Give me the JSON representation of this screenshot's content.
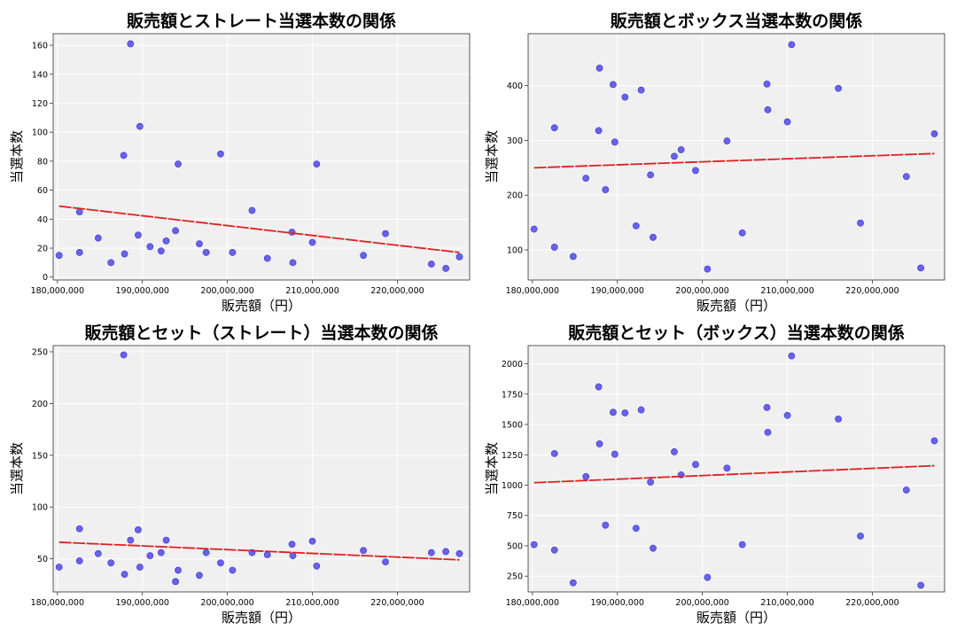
{
  "chart_data": [
    {
      "type": "scatter",
      "title": "販売額とストレート当選本数の関係",
      "xlabel": "販売額（円）",
      "ylabel": "当選本数",
      "xlim": [
        179500000,
        228500000
      ],
      "ylim": [
        -2,
        168
      ],
      "xticks": [
        180000000,
        190000000,
        200000000,
        210000000,
        220000000
      ],
      "xtick_labels": [
        "180,000,000",
        "190,000,000",
        "200,000,000",
        "210,000,000",
        "220,000,000"
      ],
      "yticks": [
        0,
        20,
        40,
        60,
        80,
        100,
        120,
        140,
        160
      ],
      "ytick_labels": [
        "0",
        "20",
        "40",
        "60",
        "80",
        "100",
        "120",
        "140",
        "160"
      ],
      "grid": true,
      "point_color": "#3b34e0",
      "trend_color": "#e02020",
      "trend": {
        "x": [
          180200000,
          227300000
        ],
        "y": [
          49,
          17
        ]
      },
      "points": [
        {
          "x": 180200000,
          "y": 15
        },
        {
          "x": 182600000,
          "y": 17
        },
        {
          "x": 182600000,
          "y": 45
        },
        {
          "x": 184800000,
          "y": 27
        },
        {
          "x": 186300000,
          "y": 10
        },
        {
          "x": 187800000,
          "y": 84
        },
        {
          "x": 187900000,
          "y": 16
        },
        {
          "x": 188600000,
          "y": 161
        },
        {
          "x": 189500000,
          "y": 29
        },
        {
          "x": 189700000,
          "y": 104
        },
        {
          "x": 190900000,
          "y": 21
        },
        {
          "x": 192200000,
          "y": 18
        },
        {
          "x": 192800000,
          "y": 25
        },
        {
          "x": 193900000,
          "y": 32
        },
        {
          "x": 194200000,
          "y": 78
        },
        {
          "x": 196700000,
          "y": 23
        },
        {
          "x": 197500000,
          "y": 17
        },
        {
          "x": 199200000,
          "y": 85
        },
        {
          "x": 200600000,
          "y": 17
        },
        {
          "x": 202900000,
          "y": 46
        },
        {
          "x": 204700000,
          "y": 13
        },
        {
          "x": 207600000,
          "y": 31
        },
        {
          "x": 207700000,
          "y": 10
        },
        {
          "x": 210000000,
          "y": 24
        },
        {
          "x": 210500000,
          "y": 78
        },
        {
          "x": 216000000,
          "y": 15
        },
        {
          "x": 218600000,
          "y": 30
        },
        {
          "x": 224000000,
          "y": 9
        },
        {
          "x": 225700000,
          "y": 6
        },
        {
          "x": 227300000,
          "y": 14
        }
      ]
    },
    {
      "type": "scatter",
      "title": "販売額とボックス当選本数の関係",
      "xlabel": "販売額（円）",
      "ylabel": "当選本数",
      "xlim": [
        179500000,
        228500000
      ],
      "ylim": [
        45,
        495
      ],
      "xticks": [
        180000000,
        190000000,
        200000000,
        210000000,
        220000000
      ],
      "xtick_labels": [
        "180,000,000",
        "190,000,000",
        "200,000,000",
        "210,000,000",
        "220,000,000"
      ],
      "yticks": [
        100,
        200,
        300,
        400
      ],
      "ytick_labels": [
        "100",
        "200",
        "300",
        "400"
      ],
      "grid": true,
      "point_color": "#3b34e0",
      "trend_color": "#e02020",
      "trend": {
        "x": [
          180200000,
          227300000
        ],
        "y": [
          250,
          276
        ]
      },
      "points": [
        {
          "x": 180200000,
          "y": 138
        },
        {
          "x": 182600000,
          "y": 105
        },
        {
          "x": 182600000,
          "y": 323
        },
        {
          "x": 184800000,
          "y": 88
        },
        {
          "x": 186300000,
          "y": 231
        },
        {
          "x": 187800000,
          "y": 318
        },
        {
          "x": 187900000,
          "y": 432
        },
        {
          "x": 188600000,
          "y": 210
        },
        {
          "x": 189500000,
          "y": 402
        },
        {
          "x": 189700000,
          "y": 297
        },
        {
          "x": 190900000,
          "y": 379
        },
        {
          "x": 192200000,
          "y": 144
        },
        {
          "x": 192800000,
          "y": 392
        },
        {
          "x": 193900000,
          "y": 237
        },
        {
          "x": 194200000,
          "y": 123
        },
        {
          "x": 196700000,
          "y": 271
        },
        {
          "x": 197500000,
          "y": 283
        },
        {
          "x": 199200000,
          "y": 245
        },
        {
          "x": 200600000,
          "y": 65
        },
        {
          "x": 202900000,
          "y": 299
        },
        {
          "x": 204700000,
          "y": 131
        },
        {
          "x": 207600000,
          "y": 403
        },
        {
          "x": 207700000,
          "y": 356
        },
        {
          "x": 210000000,
          "y": 334
        },
        {
          "x": 210500000,
          "y": 475
        },
        {
          "x": 216000000,
          "y": 395
        },
        {
          "x": 218600000,
          "y": 149
        },
        {
          "x": 224000000,
          "y": 234
        },
        {
          "x": 225700000,
          "y": 67
        },
        {
          "x": 227300000,
          "y": 312
        }
      ]
    },
    {
      "type": "scatter",
      "title": "販売額とセット（ストレート）当選本数の関係",
      "xlabel": "販売額（円）",
      "ylabel": "当選本数",
      "xlim": [
        179500000,
        228500000
      ],
      "ylim": [
        18,
        256
      ],
      "xticks": [
        180000000,
        190000000,
        200000000,
        210000000,
        220000000
      ],
      "xtick_labels": [
        "180,000,000",
        "190,000,000",
        "200,000,000",
        "210,000,000",
        "220,000,000"
      ],
      "yticks": [
        50,
        100,
        150,
        200,
        250
      ],
      "ytick_labels": [
        "50",
        "100",
        "150",
        "200",
        "250"
      ],
      "grid": true,
      "point_color": "#3b34e0",
      "trend_color": "#e02020",
      "trend": {
        "x": [
          180200000,
          227300000
        ],
        "y": [
          66,
          49
        ]
      },
      "points": [
        {
          "x": 180200000,
          "y": 42
        },
        {
          "x": 182600000,
          "y": 48
        },
        {
          "x": 182600000,
          "y": 79
        },
        {
          "x": 184800000,
          "y": 55
        },
        {
          "x": 186300000,
          "y": 46
        },
        {
          "x": 187800000,
          "y": 247
        },
        {
          "x": 187900000,
          "y": 35
        },
        {
          "x": 188600000,
          "y": 68
        },
        {
          "x": 189500000,
          "y": 78
        },
        {
          "x": 189700000,
          "y": 42
        },
        {
          "x": 190900000,
          "y": 53
        },
        {
          "x": 192200000,
          "y": 56
        },
        {
          "x": 192800000,
          "y": 68
        },
        {
          "x": 193900000,
          "y": 28
        },
        {
          "x": 194200000,
          "y": 39
        },
        {
          "x": 196700000,
          "y": 34
        },
        {
          "x": 197500000,
          "y": 56
        },
        {
          "x": 199200000,
          "y": 46
        },
        {
          "x": 200600000,
          "y": 39
        },
        {
          "x": 202900000,
          "y": 56
        },
        {
          "x": 204700000,
          "y": 54
        },
        {
          "x": 207600000,
          "y": 64
        },
        {
          "x": 207700000,
          "y": 53
        },
        {
          "x": 210000000,
          "y": 67
        },
        {
          "x": 210500000,
          "y": 43
        },
        {
          "x": 216000000,
          "y": 58
        },
        {
          "x": 218600000,
          "y": 47
        },
        {
          "x": 224000000,
          "y": 56
        },
        {
          "x": 225700000,
          "y": 57
        },
        {
          "x": 227300000,
          "y": 55
        }
      ]
    },
    {
      "type": "scatter",
      "title": "販売額とセット（ボックス）当選本数の関係",
      "xlabel": "販売額（円）",
      "ylabel": "当選本数",
      "xlim": [
        179500000,
        228500000
      ],
      "ylim": [
        120,
        2150
      ],
      "xticks": [
        180000000,
        190000000,
        200000000,
        210000000,
        220000000
      ],
      "xtick_labels": [
        "180,000,000",
        "190,000,000",
        "200,000,000",
        "210,000,000",
        "220,000,000"
      ],
      "yticks": [
        250,
        500,
        750,
        1000,
        1250,
        1500,
        1750,
        2000
      ],
      "ytick_labels": [
        "250",
        "500",
        "750",
        "1000",
        "1250",
        "1500",
        "1750",
        "2000"
      ],
      "grid": true,
      "point_color": "#3b34e0",
      "trend_color": "#e02020",
      "trend": {
        "x": [
          180200000,
          227300000
        ],
        "y": [
          1020,
          1160
        ]
      },
      "points": [
        {
          "x": 180200000,
          "y": 510
        },
        {
          "x": 182600000,
          "y": 465
        },
        {
          "x": 182600000,
          "y": 1260
        },
        {
          "x": 184800000,
          "y": 195
        },
        {
          "x": 186300000,
          "y": 1070
        },
        {
          "x": 187800000,
          "y": 1810
        },
        {
          "x": 187900000,
          "y": 1340
        },
        {
          "x": 188600000,
          "y": 670
        },
        {
          "x": 189500000,
          "y": 1600
        },
        {
          "x": 189700000,
          "y": 1255
        },
        {
          "x": 190900000,
          "y": 1595
        },
        {
          "x": 192200000,
          "y": 645
        },
        {
          "x": 192800000,
          "y": 1620
        },
        {
          "x": 193900000,
          "y": 1025
        },
        {
          "x": 194200000,
          "y": 480
        },
        {
          "x": 196700000,
          "y": 1275
        },
        {
          "x": 197500000,
          "y": 1085
        },
        {
          "x": 199200000,
          "y": 1170
        },
        {
          "x": 200600000,
          "y": 240
        },
        {
          "x": 202900000,
          "y": 1140
        },
        {
          "x": 204700000,
          "y": 510
        },
        {
          "x": 207600000,
          "y": 1640
        },
        {
          "x": 207700000,
          "y": 1435
        },
        {
          "x": 210000000,
          "y": 1575
        },
        {
          "x": 210500000,
          "y": 2065
        },
        {
          "x": 216000000,
          "y": 1545
        },
        {
          "x": 218600000,
          "y": 580
        },
        {
          "x": 224000000,
          "y": 960
        },
        {
          "x": 225700000,
          "y": 175
        },
        {
          "x": 227300000,
          "y": 1365
        }
      ]
    }
  ]
}
